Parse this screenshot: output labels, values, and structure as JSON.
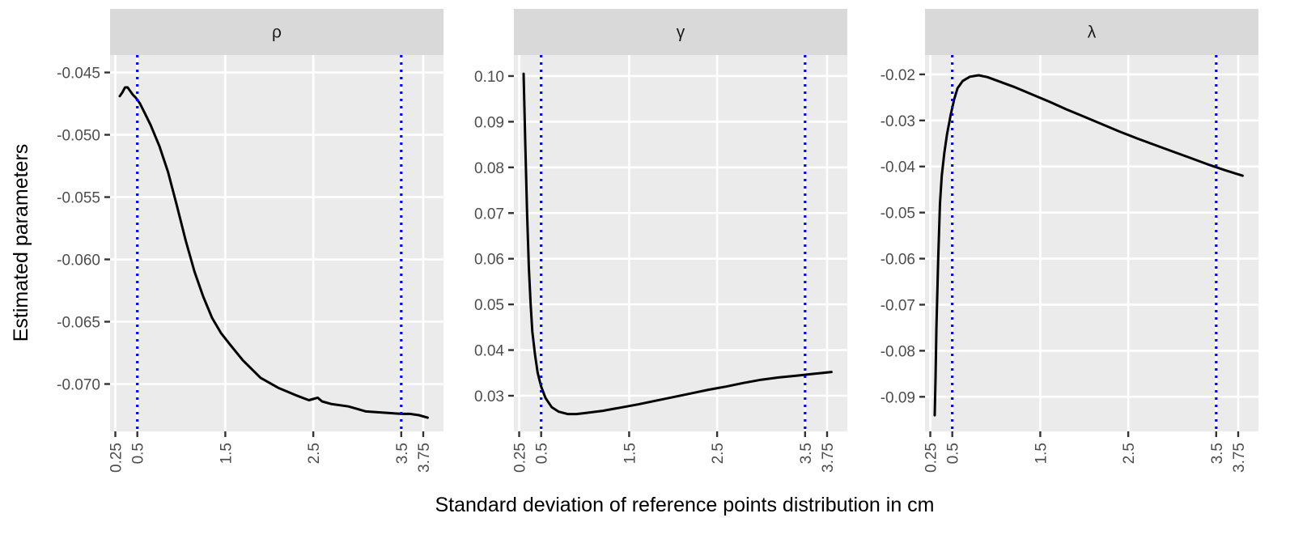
{
  "chart_data": {
    "type": "line",
    "xlabel": "Standard deviation of reference points distribution in cm",
    "ylabel": "Estimated parameters",
    "x_ticks": [
      0.25,
      0.5,
      1.5,
      2.5,
      3.5,
      3.75
    ],
    "x_tick_labels": [
      "0.25",
      "0.5",
      "1.5",
      "2.5",
      "3.5",
      "3.75"
    ],
    "xlim": [
      0.19,
      3.98
    ],
    "reference_lines_x": [
      0.5,
      3.5
    ],
    "reference_line_color": "#0000ff",
    "grid": true,
    "panel_background": "#ebebeb",
    "strip_background": "#d9d9d9",
    "line_color": "#000000",
    "panels": [
      {
        "strip": "ρ",
        "ylim": [
          -0.0738,
          -0.0436
        ],
        "y_ticks": [
          -0.045,
          -0.05,
          -0.055,
          -0.06,
          -0.065,
          -0.07
        ],
        "y_tick_labels": [
          "-0.045",
          "-0.050",
          "-0.055",
          "-0.060",
          "-0.065",
          "-0.070"
        ],
        "x": [
          0.3,
          0.33,
          0.36,
          0.39,
          0.42,
          0.45,
          0.48,
          0.5,
          0.53,
          0.58,
          0.65,
          0.75,
          0.85,
          0.95,
          1.05,
          1.15,
          1.25,
          1.35,
          1.45,
          1.55,
          1.7,
          1.9,
          2.1,
          2.3,
          2.45,
          2.55,
          2.6,
          2.7,
          2.9,
          3.1,
          3.3,
          3.5,
          3.6,
          3.7,
          3.8
        ],
        "y": [
          -0.0469,
          -0.0466,
          -0.0462,
          -0.0462,
          -0.0465,
          -0.0468,
          -0.047,
          -0.0472,
          -0.0475,
          -0.0482,
          -0.0492,
          -0.0509,
          -0.053,
          -0.0557,
          -0.0585,
          -0.061,
          -0.063,
          -0.0647,
          -0.0659,
          -0.0668,
          -0.0681,
          -0.0695,
          -0.0703,
          -0.0709,
          -0.0713,
          -0.0711,
          -0.0714,
          -0.0716,
          -0.0718,
          -0.0722,
          -0.0723,
          -0.0724,
          -0.0724,
          -0.0725,
          -0.0727
        ]
      },
      {
        "strip": "γ",
        "ylim": [
          0.0222,
          0.1046
        ],
        "y_ticks": [
          0.1,
          0.09,
          0.08,
          0.07,
          0.06,
          0.05,
          0.04,
          0.03
        ],
        "y_tick_labels": [
          "0.10",
          "0.09",
          "0.08",
          "0.07",
          "0.06",
          "0.05",
          "0.04",
          "0.03"
        ],
        "x": [
          0.3,
          0.32,
          0.34,
          0.36,
          0.38,
          0.4,
          0.43,
          0.46,
          0.5,
          0.55,
          0.62,
          0.7,
          0.8,
          0.9,
          1.0,
          1.2,
          1.4,
          1.6,
          1.8,
          2.0,
          2.2,
          2.4,
          2.6,
          2.8,
          3.0,
          3.2,
          3.4,
          3.6,
          3.8
        ],
        "y": [
          0.1005,
          0.085,
          0.07,
          0.058,
          0.05,
          0.044,
          0.039,
          0.035,
          0.032,
          0.0295,
          0.0275,
          0.0265,
          0.026,
          0.026,
          0.0262,
          0.0267,
          0.0274,
          0.0281,
          0.0289,
          0.0297,
          0.0305,
          0.0313,
          0.032,
          0.0328,
          0.0335,
          0.034,
          0.0344,
          0.0348,
          0.0352
        ]
      },
      {
        "strip": "λ",
        "ylim": [
          -0.0975,
          -0.0158
        ],
        "y_ticks": [
          -0.02,
          -0.03,
          -0.04,
          -0.05,
          -0.06,
          -0.07,
          -0.08,
          -0.09
        ],
        "y_tick_labels": [
          "-0.02",
          "-0.03",
          "-0.04",
          "-0.05",
          "-0.06",
          "-0.07",
          "-0.08",
          "-0.09"
        ],
        "x": [
          0.3,
          0.31,
          0.32,
          0.34,
          0.36,
          0.38,
          0.41,
          0.44,
          0.48,
          0.52,
          0.56,
          0.62,
          0.7,
          0.8,
          0.9,
          1.0,
          1.2,
          1.4,
          1.6,
          1.8,
          2.0,
          2.2,
          2.4,
          2.6,
          2.8,
          3.0,
          3.2,
          3.4,
          3.6,
          3.8
        ],
        "y": [
          -0.094,
          -0.086,
          -0.075,
          -0.06,
          -0.048,
          -0.042,
          -0.037,
          -0.033,
          -0.029,
          -0.0255,
          -0.023,
          -0.0214,
          -0.0205,
          -0.0202,
          -0.0206,
          -0.0213,
          -0.0227,
          -0.0243,
          -0.0259,
          -0.0276,
          -0.0292,
          -0.0308,
          -0.0324,
          -0.0339,
          -0.0353,
          -0.0367,
          -0.0381,
          -0.0395,
          -0.0408,
          -0.042
        ]
      }
    ]
  }
}
